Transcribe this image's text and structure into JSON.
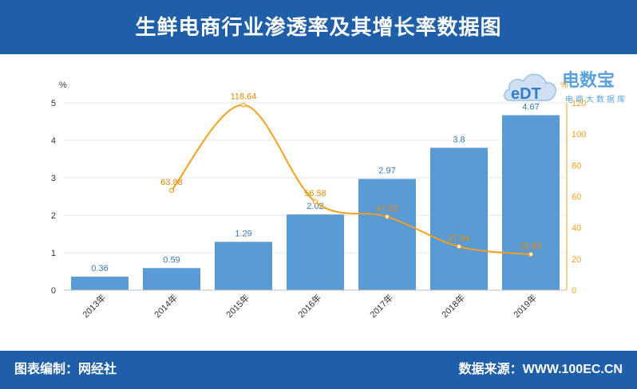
{
  "title": "生鲜电商行业渗透率及其增长率数据图",
  "footer": {
    "left": "图表编制：网经社",
    "right": "数据来源：WWW.100EC.CN"
  },
  "logo": {
    "mark": "eDT",
    "name": "电数宝",
    "tagline": "电商大数据库"
  },
  "chart_data": {
    "type": "bar",
    "categories": [
      "2013年",
      "2014年",
      "2015年",
      "2016年",
      "2017年",
      "2018年",
      "2019年"
    ],
    "series": [
      {
        "values": [
          0.36,
          0.59,
          1.29,
          2.02,
          2.97,
          3.8,
          4.67
        ],
        "axis": "left",
        "kind": "bar",
        "color": "#5b9bd5"
      },
      {
        "values": [
          null,
          63.88,
          118.64,
          56.58,
          47.02,
          27.94,
          22.89
        ],
        "axis": "right",
        "kind": "line",
        "color": "#f5a01a"
      }
    ],
    "value_labels": {
      "bar": [
        "0.36",
        "0.59",
        "1.29",
        "2.02",
        "2.97",
        "3.8",
        "4.67"
      ],
      "line": [
        "",
        "63.88",
        "118.64",
        "56.58",
        "47.02",
        "27.94",
        "22.89"
      ]
    },
    "left_axis": {
      "unit": "%",
      "ylim": [
        0,
        5
      ],
      "ticks": [
        "0",
        "1",
        "2",
        "3",
        "4",
        "5"
      ]
    },
    "right_axis": {
      "unit": "%",
      "ylim": [
        0,
        120
      ],
      "ticks": [
        "0",
        "20",
        "40",
        "60",
        "80",
        "100",
        "120"
      ]
    },
    "grid": true
  }
}
